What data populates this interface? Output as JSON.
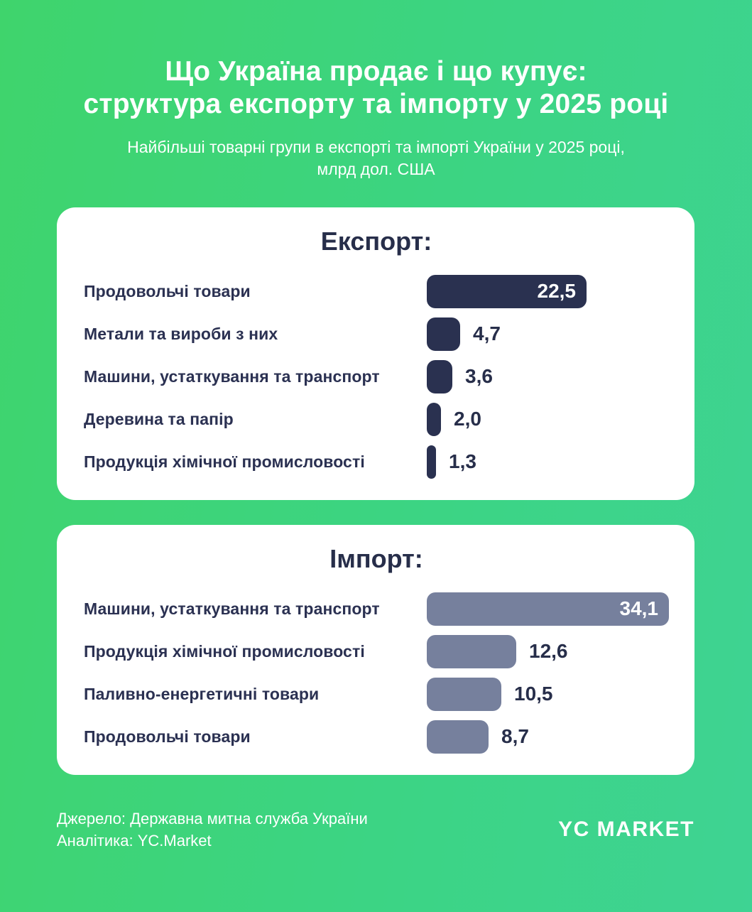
{
  "header": {
    "title_line1": "Що Україна продає і що купує:",
    "title_line2": "структура експорту та імпорту у 2025 році",
    "subtitle_line1": "Найбільші товарні групи в експорті та імпорті України у 2025 році,",
    "subtitle_line2": "млрд дол. США"
  },
  "chart_data": [
    {
      "type": "bar",
      "orientation": "horizontal",
      "title": "Експорт:",
      "unit": "млрд дол. США",
      "categories": [
        "Продовольчі товари",
        "Метали та вироби з них",
        "Машини, устаткування та транспорт",
        "Деревина та папір",
        "Продукція хімічної промисловості"
      ],
      "values": [
        22.5,
        4.7,
        3.6,
        2.0,
        1.3
      ],
      "value_labels": [
        "22,5",
        "4,7",
        "3,6",
        "2,0",
        "1,3"
      ],
      "xlim": [
        0,
        34.1
      ],
      "grid": false,
      "legend": false
    },
    {
      "type": "bar",
      "orientation": "horizontal",
      "title": "Імпорт:",
      "unit": "млрд дол. США",
      "categories": [
        "Машини, устаткування та транспорт",
        "Продукція хімічної промисловості",
        "Паливно-енергетичні товари",
        "Продовольчі товари"
      ],
      "values": [
        34.1,
        12.6,
        10.5,
        8.7
      ],
      "value_labels": [
        "34,1",
        "12,6",
        "10,5",
        "8,7"
      ],
      "xlim": [
        0,
        34.1
      ],
      "grid": false,
      "legend": false
    }
  ],
  "footer": {
    "source": "Джерело: Державна митна служба України",
    "analytics": "Аналітика: YC.Market",
    "logo": "YC MARKET"
  },
  "colors": {
    "background_start": "#3fd46c",
    "background_end": "#3ed393",
    "export_bar": "#2a3150",
    "import_bar": "#76809d",
    "card_background": "#ffffff",
    "text_dark": "#2b3152",
    "text_light": "#ffffff"
  }
}
